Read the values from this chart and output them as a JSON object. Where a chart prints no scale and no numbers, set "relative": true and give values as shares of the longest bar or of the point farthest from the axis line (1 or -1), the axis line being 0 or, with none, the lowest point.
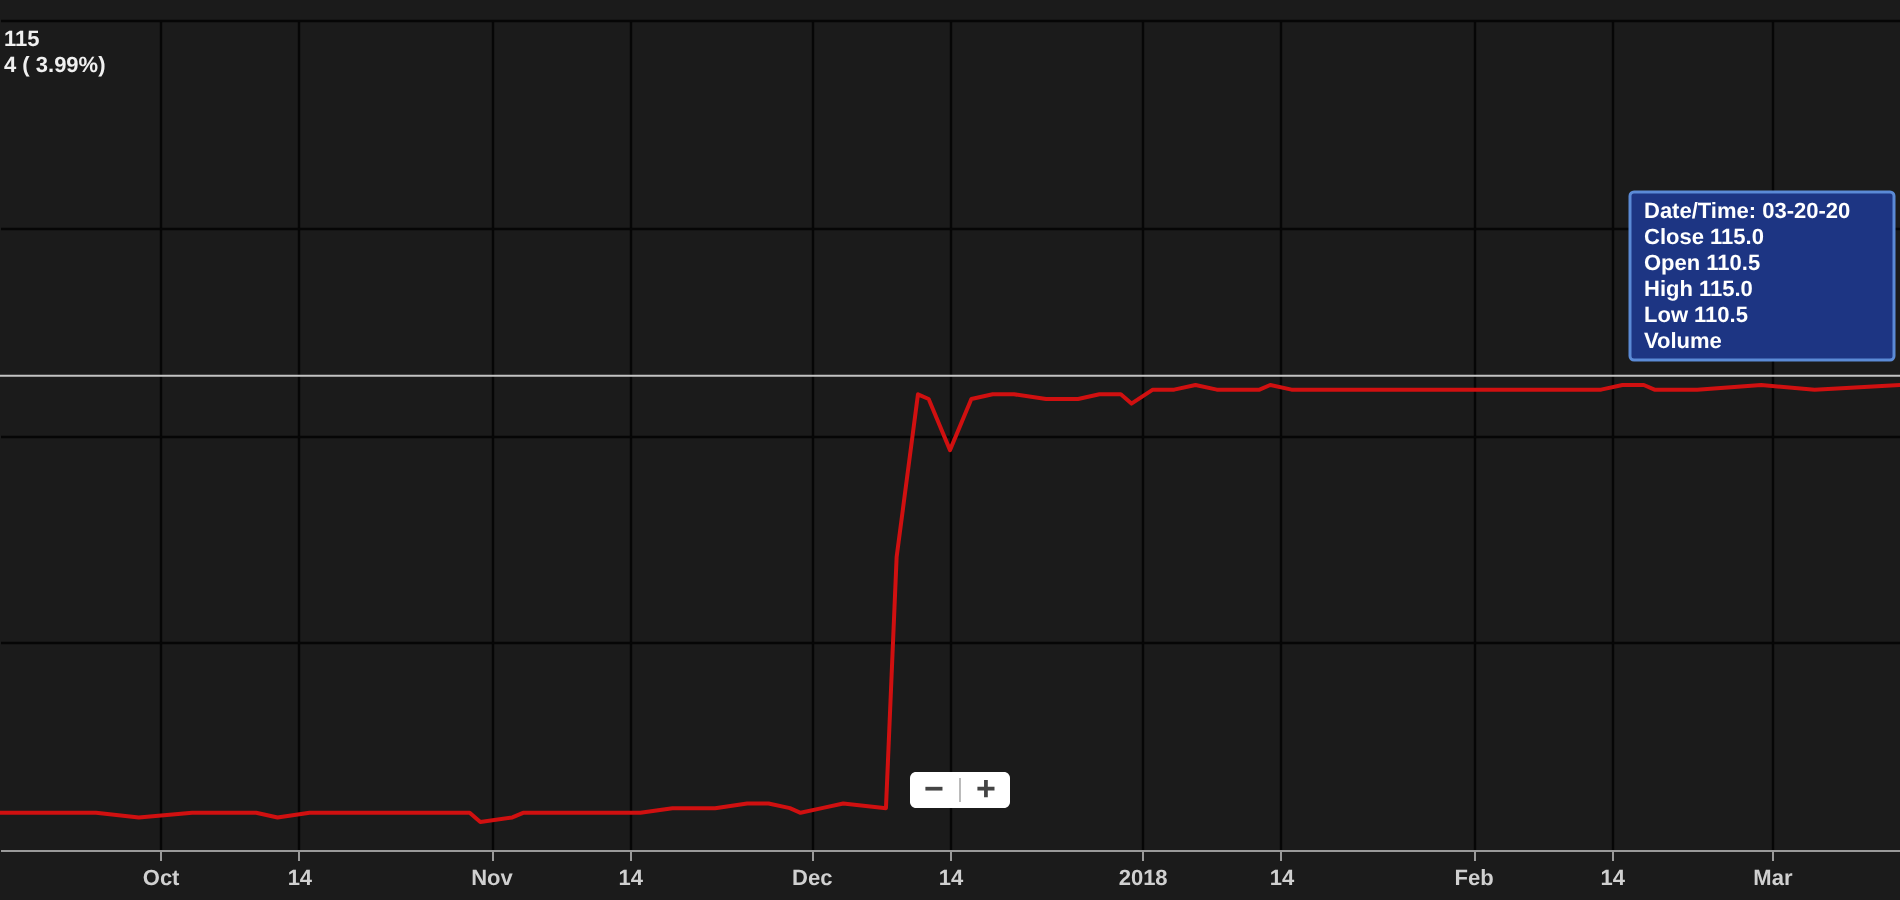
{
  "chart_data": {
    "type": "line",
    "relative": true,
    "x": [
      "2017-09-16",
      "2017-09-25",
      "2017-09-29",
      "2017-10-04",
      "2017-10-07",
      "2017-10-10",
      "2017-10-12",
      "2017-10-15",
      "2017-10-22",
      "2017-10-26",
      "2017-10-30",
      "2017-10-31",
      "2017-11-03",
      "2017-11-04",
      "2017-11-10",
      "2017-11-15",
      "2017-11-18",
      "2017-11-22",
      "2017-11-25",
      "2017-11-27",
      "2017-11-29",
      "2017-11-30",
      "2017-12-02",
      "2017-12-04",
      "2017-12-08",
      "2017-12-09",
      "2017-12-11",
      "2017-12-12",
      "2017-12-14",
      "2017-12-16",
      "2017-12-18",
      "2017-12-20",
      "2017-12-23",
      "2017-12-26",
      "2017-12-28",
      "2017-12-30",
      "2017-12-31",
      "2018-01-02",
      "2018-01-04",
      "2018-01-06",
      "2018-01-08",
      "2018-01-12",
      "2018-01-13",
      "2018-01-15",
      "2018-01-19",
      "2018-01-25",
      "2018-01-29",
      "2018-02-05",
      "2018-02-13",
      "2018-02-15",
      "2018-02-17",
      "2018-02-18",
      "2018-02-22",
      "2018-02-28",
      "2018-03-05",
      "2018-03-13"
    ],
    "series": [
      {
        "color": "#d01010",
        "values": [
          0.08,
          0.08,
          0.07,
          0.08,
          0.08,
          0.08,
          0.07,
          0.08,
          0.08,
          0.08,
          0.08,
          0.06,
          0.07,
          0.08,
          0.08,
          0.08,
          0.09,
          0.09,
          0.1,
          0.1,
          0.09,
          0.08,
          0.09,
          0.1,
          0.09,
          0.63,
          0.98,
          0.97,
          0.86,
          0.97,
          0.98,
          0.98,
          0.97,
          0.97,
          0.98,
          0.98,
          0.96,
          0.99,
          0.99,
          1.0,
          0.99,
          0.99,
          1.0,
          0.99,
          0.99,
          0.99,
          0.99,
          0.99,
          0.99,
          1.0,
          1.0,
          0.99,
          0.99,
          1.0,
          0.99,
          1.0
        ]
      }
    ],
    "xlim": [
      "2017-09-16",
      "2018-03-13"
    ],
    "xticks": [
      {
        "value": "2017-10-01",
        "label": "Oct"
      },
      {
        "value": "2017-10-14",
        "label": "14"
      },
      {
        "value": "2017-11-01",
        "label": "Nov"
      },
      {
        "value": "2017-11-14",
        "label": "14"
      },
      {
        "value": "2017-12-01",
        "label": "Dec"
      },
      {
        "value": "2017-12-14",
        "label": "14"
      },
      {
        "value": "2018-01-01",
        "label": "2018"
      },
      {
        "value": "2018-01-14",
        "label": "14"
      },
      {
        "value": "2018-02-01",
        "label": "Feb"
      },
      {
        "value": "2018-02-14",
        "label": "14"
      },
      {
        "value": "2018-03-01",
        "label": "Mar"
      }
    ],
    "ref_lines": [
      {
        "axis": "y",
        "value": 1.02,
        "color": "#c4c4c4"
      }
    ],
    "grid": true,
    "annotations": [
      "115",
      "4 ( 3.99%)",
      "Date/Time: 03-20-20",
      "Close 115.0",
      "Open 110.5",
      "High 115.0",
      "Low 110.5",
      "Volume",
      "−",
      "+"
    ]
  }
}
